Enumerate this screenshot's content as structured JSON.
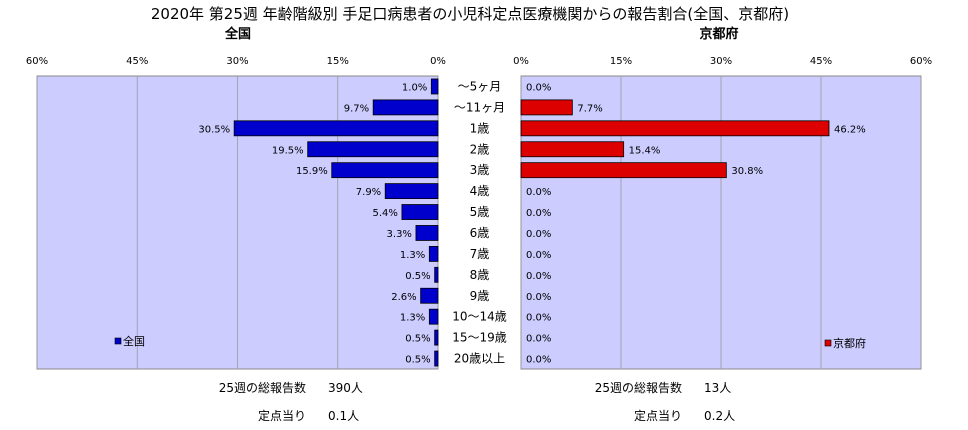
{
  "chart_data": {
    "type": "bar",
    "title": "2020年 第25週 年齢階級別 手足口病患者の小児科定点医療機関からの報告割合(全国、京都府)",
    "categories": [
      "～5ヶ月",
      "～11ヶ月",
      "1歳",
      "2歳",
      "3歳",
      "4歳",
      "5歳",
      "6歳",
      "7歳",
      "8歳",
      "9歳",
      "10～14歳",
      "15～19歳",
      "20歳以上"
    ],
    "series": [
      {
        "name": "全国",
        "values": [
          1.0,
          9.7,
          30.5,
          19.5,
          15.9,
          7.9,
          5.4,
          3.3,
          1.3,
          0.5,
          2.6,
          1.3,
          0.5,
          0.5
        ],
        "labels": [
          "1.0%",
          "9.7%",
          "30.5%",
          "19.5%",
          "15.9%",
          "7.9%",
          "5.4%",
          "3.3%",
          "1.3%",
          "0.5%",
          "2.6%",
          "1.3%",
          "0.5%",
          "0.5%"
        ],
        "color": "#0000cc"
      },
      {
        "name": "京都府",
        "values": [
          0.0,
          7.7,
          46.2,
          15.4,
          30.8,
          0.0,
          0.0,
          0.0,
          0.0,
          0.0,
          0.0,
          0.0,
          0.0,
          0.0
        ],
        "labels": [
          "0.0%",
          "7.7%",
          "46.2%",
          "15.4%",
          "30.8%",
          "0.0%",
          "0.0%",
          "0.0%",
          "0.0%",
          "0.0%",
          "0.0%",
          "0.0%",
          "0.0%",
          "0.0%"
        ],
        "color": "#dd0000"
      }
    ],
    "panels": [
      {
        "title": "全国",
        "ticks": [
          "60%",
          "45%",
          "30%",
          "15%",
          "0%"
        ],
        "xlim": [
          0,
          60
        ],
        "direction": "reversed"
      },
      {
        "title": "京都府",
        "ticks": [
          "0%",
          "15%",
          "30%",
          "45%",
          "60%"
        ],
        "xlim": [
          0,
          60
        ],
        "direction": "normal"
      }
    ],
    "legend": [
      "全国",
      "京都府"
    ],
    "plot_background": "#ccccff",
    "grid": true
  },
  "stats": {
    "national": {
      "reports_label": "25週の総報告数",
      "reports_value": "390人",
      "per_site_label": "定点当り",
      "per_site_value": "0.1人"
    },
    "kyoto": {
      "reports_label": "25週の総報告数",
      "reports_value": "13人",
      "per_site_label": "定点当り",
      "per_site_value": "0.2人"
    }
  }
}
